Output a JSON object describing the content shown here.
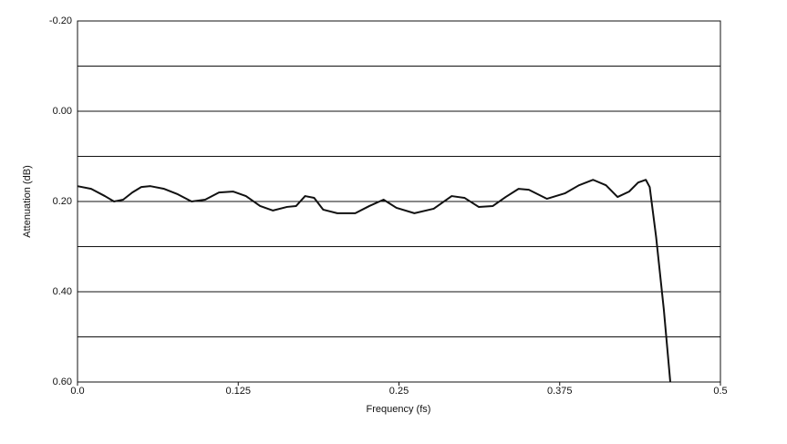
{
  "chart_data": {
    "type": "line",
    "xlabel": "Frequency (fs)",
    "ylabel": "Attenuation (dB)",
    "xlim": [
      0,
      0.5
    ],
    "ylim": [
      -0.2,
      0.6
    ],
    "y_inverted": true,
    "xticks": [
      {
        "value": 0,
        "label": "0.0"
      },
      0.125,
      0.25,
      0.375,
      0.5
    ],
    "yticks": [
      {
        "value": -0.2,
        "label": "-0.20"
      },
      {
        "value": 0,
        "label": "0.00"
      },
      {
        "value": 0.2,
        "label": "0.20"
      },
      {
        "value": 0.4,
        "label": "0.40"
      },
      {
        "value": 0.6,
        "label": "0.60"
      }
    ],
    "minor_yticks": [
      -0.1,
      0.1,
      0.3,
      0.5
    ],
    "grid": true,
    "series": [
      {
        "color": "#111111",
        "x": [
          0,
          0.0106,
          0.0213,
          0.0284,
          0.0355,
          0.0426,
          0.0496,
          0.0567,
          0.0674,
          0.078,
          0.0887,
          0.0993,
          0.11,
          0.121,
          0.131,
          0.142,
          0.152,
          0.163,
          0.17,
          0.177,
          0.184,
          0.191,
          0.202,
          0.216,
          0.227,
          0.238,
          0.248,
          0.262,
          0.277,
          0.291,
          0.301,
          0.312,
          0.323,
          0.333,
          0.343,
          0.351,
          0.365,
          0.379,
          0.39,
          0.401,
          0.411,
          0.42,
          0.429,
          0.436,
          0.442,
          0.445,
          0.45,
          0.456,
          0.461
        ],
        "values": [
          0.166,
          0.172,
          0.188,
          0.2,
          0.196,
          0.18,
          0.168,
          0.166,
          0.172,
          0.184,
          0.2,
          0.196,
          0.18,
          0.178,
          0.188,
          0.21,
          0.22,
          0.212,
          0.21,
          0.188,
          0.192,
          0.218,
          0.226,
          0.226,
          0.21,
          0.196,
          0.214,
          0.226,
          0.216,
          0.188,
          0.192,
          0.212,
          0.21,
          0.19,
          0.172,
          0.174,
          0.194,
          0.182,
          0.164,
          0.152,
          0.164,
          0.19,
          0.178,
          0.158,
          0.152,
          0.168,
          0.279,
          0.44,
          0.6
        ]
      }
    ]
  }
}
